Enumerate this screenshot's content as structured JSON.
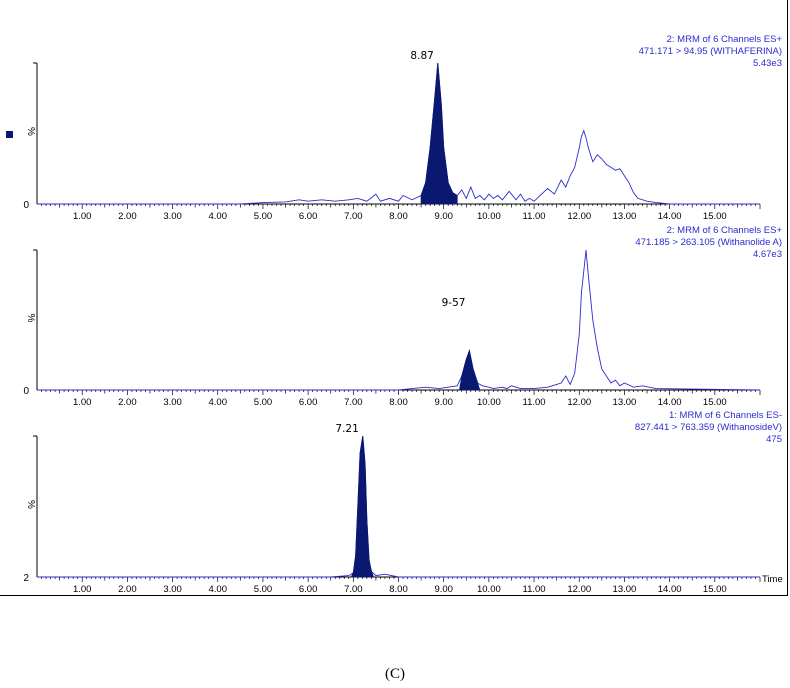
{
  "caption": "(C)",
  "colors": {
    "trace": "#2b2bd0",
    "fill": "#0b1870",
    "axis": "#000000",
    "legend_text": "#2b2bd0"
  },
  "chart_data": [
    {
      "type": "line",
      "title_lines": [
        "2: MRM of 6 Channels ES+",
        "471.171 > 94.95 (WITHAFERINA)",
        "5.43e3"
      ],
      "ylabel": "%",
      "y_tick_labels": [
        "0"
      ],
      "xlabel": "",
      "x_ticks": [
        "1.00",
        "2.00",
        "3.00",
        "4.00",
        "5.00",
        "6.00",
        "7.00",
        "8.00",
        "9.00",
        "10.00",
        "11.00",
        "12.00",
        "13.00",
        "14.00",
        "15.00"
      ],
      "xlim": [
        0,
        16.0
      ],
      "ylim": [
        0,
        100
      ],
      "peak_annotation": {
        "label": "8.87",
        "x": 8.87
      },
      "filled_peak": {
        "x_range": [
          8.5,
          9.3
        ]
      },
      "series": [
        {
          "x": [
            0,
            4.5,
            5.0,
            5.5,
            5.8,
            6.0,
            6.3,
            6.6,
            6.9,
            7.1,
            7.3,
            7.5,
            7.6,
            7.8,
            8.0,
            8.1,
            8.3,
            8.5,
            8.6,
            8.7,
            8.8,
            8.87,
            8.95,
            9.0,
            9.1,
            9.2,
            9.3,
            9.4,
            9.5,
            9.6,
            9.7,
            9.8,
            9.9,
            10.0,
            10.1,
            10.2,
            10.3,
            10.45,
            10.6,
            10.7,
            10.8,
            10.9,
            11.0,
            11.1,
            11.2,
            11.3,
            11.45,
            11.6,
            11.7,
            11.8,
            11.9,
            12.0,
            12.05,
            12.1,
            12.15,
            12.2,
            12.3,
            12.4,
            12.5,
            12.6,
            12.7,
            12.8,
            12.9,
            13.0,
            13.1,
            13.2,
            13.3,
            13.5,
            13.7,
            14.0,
            16.0
          ],
          "y": [
            0,
            0,
            1,
            1.5,
            3,
            2,
            3,
            2,
            3,
            4,
            2,
            7,
            2,
            4,
            2,
            6,
            3,
            6,
            15,
            40,
            75,
            100,
            70,
            40,
            15,
            8,
            6,
            10,
            4,
            12,
            4,
            6,
            3,
            7,
            4,
            6,
            3,
            9,
            3,
            7,
            2,
            4,
            2,
            5,
            8,
            11,
            7,
            17,
            12,
            20,
            26,
            40,
            48,
            52,
            47,
            40,
            30,
            35,
            32,
            28,
            26,
            24,
            25,
            20,
            15,
            8,
            4,
            2,
            1,
            0,
            0
          ]
        }
      ]
    },
    {
      "type": "line",
      "title_lines": [
        "2: MRM of 6 Channels ES+",
        "471.185 > 263.105 (Withanolide A)",
        "4.67e3"
      ],
      "ylabel": "%",
      "y_tick_labels": [
        "0"
      ],
      "xlabel": "",
      "x_ticks": [
        "1.00",
        "2.00",
        "3.00",
        "4.00",
        "5.00",
        "6.00",
        "7.00",
        "8.00",
        "9.00",
        "10.00",
        "11.00",
        "12.00",
        "13.00",
        "14.00",
        "15.00"
      ],
      "xlim": [
        0,
        16.0
      ],
      "ylim": [
        0,
        100
      ],
      "peak_annotation": {
        "label": "9-57",
        "x": 9.57
      },
      "filled_peak": {
        "x_range": [
          9.35,
          9.8
        ]
      },
      "series": [
        {
          "x": [
            0,
            8.0,
            8.3,
            8.6,
            8.9,
            9.1,
            9.3,
            9.4,
            9.5,
            9.57,
            9.65,
            9.75,
            9.85,
            10.0,
            10.1,
            10.3,
            10.4,
            10.5,
            10.7,
            11.0,
            11.3,
            11.5,
            11.6,
            11.7,
            11.8,
            11.9,
            12.0,
            12.05,
            12.1,
            12.15,
            12.2,
            12.3,
            12.4,
            12.5,
            12.6,
            12.7,
            12.8,
            12.9,
            13.0,
            13.2,
            13.4,
            13.7,
            16.0
          ],
          "y": [
            0,
            0,
            1,
            2,
            1,
            2,
            3,
            10,
            22,
            28,
            15,
            5,
            3,
            2,
            1,
            2,
            1,
            3,
            1,
            1,
            2,
            4,
            5,
            10,
            4,
            12,
            40,
            70,
            85,
            100,
            82,
            50,
            30,
            15,
            10,
            5,
            7,
            3,
            5,
            2,
            3,
            1,
            0
          ]
        }
      ]
    },
    {
      "type": "line",
      "title_lines": [
        "1: MRM of 6 Channels ES-",
        "827.441 > 763.359 (WithanosideV)",
        "475"
      ],
      "ylabel": "%",
      "y_tick_labels": [
        "2"
      ],
      "xlabel": "Time",
      "x_ticks": [
        "1.00",
        "2.00",
        "3.00",
        "4.00",
        "5.00",
        "6.00",
        "7.00",
        "8.00",
        "9.00",
        "10.00",
        "11.00",
        "12.00",
        "13.00",
        "14.00",
        "15.00"
      ],
      "xlim": [
        0,
        16.0
      ],
      "ylim": [
        0,
        100
      ],
      "peak_annotation": {
        "label": "7.21",
        "x": 7.21
      },
      "filled_peak": {
        "x_range": [
          6.95,
          7.45
        ]
      },
      "series": [
        {
          "x": [
            0,
            6.5,
            6.9,
            7.0,
            7.05,
            7.1,
            7.15,
            7.21,
            7.26,
            7.3,
            7.35,
            7.4,
            7.5,
            7.7,
            8.0,
            16.0
          ],
          "y": [
            0,
            0,
            1,
            3,
            15,
            50,
            88,
            100,
            80,
            40,
            12,
            4,
            1,
            2,
            0,
            0
          ]
        }
      ]
    }
  ]
}
